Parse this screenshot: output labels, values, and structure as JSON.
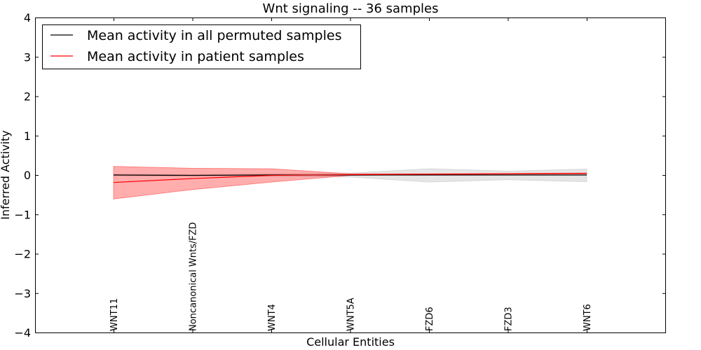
{
  "chart_data": {
    "type": "line",
    "title": "Wnt signaling -- 36 samples",
    "xlabel": "Cellular Entities",
    "ylabel": "Inferred Activity",
    "ylim": [
      -4,
      4
    ],
    "yticks": [
      -4,
      -3,
      -2,
      -1,
      0,
      1,
      2,
      3,
      4
    ],
    "ytick_labels": [
      "−4",
      "−3",
      "−2",
      "−1",
      "0",
      "1",
      "2",
      "3",
      "4"
    ],
    "categories": [
      "WNT11",
      "Noncanonical Wnts/FZD",
      "WNT4",
      "WNT5A",
      "FZD6",
      "FZD3",
      "WNT6"
    ],
    "legend_position": "top-left",
    "series": [
      {
        "name": "Mean activity in all permuted samples",
        "color": "#000000",
        "band_color": "#bfbfbf",
        "values": [
          0.0,
          -0.01,
          0.0,
          0.0,
          0.0,
          0.0,
          0.0
        ],
        "lower": [
          -0.02,
          -0.03,
          -0.03,
          -0.05,
          -0.18,
          -0.12,
          -0.17
        ],
        "upper": [
          0.02,
          0.01,
          0.03,
          0.05,
          0.16,
          0.1,
          0.15
        ]
      },
      {
        "name": "Mean activity in patient samples",
        "color": "#ff0000",
        "band_color": "#ff3333",
        "values": [
          -0.19,
          -0.09,
          -0.01,
          0.01,
          0.02,
          0.03,
          0.04
        ],
        "lower": [
          -0.61,
          -0.37,
          -0.18,
          -0.01,
          0.01,
          0.02,
          0.03
        ],
        "upper": [
          0.22,
          0.17,
          0.16,
          0.03,
          0.03,
          0.04,
          0.05
        ]
      }
    ]
  }
}
